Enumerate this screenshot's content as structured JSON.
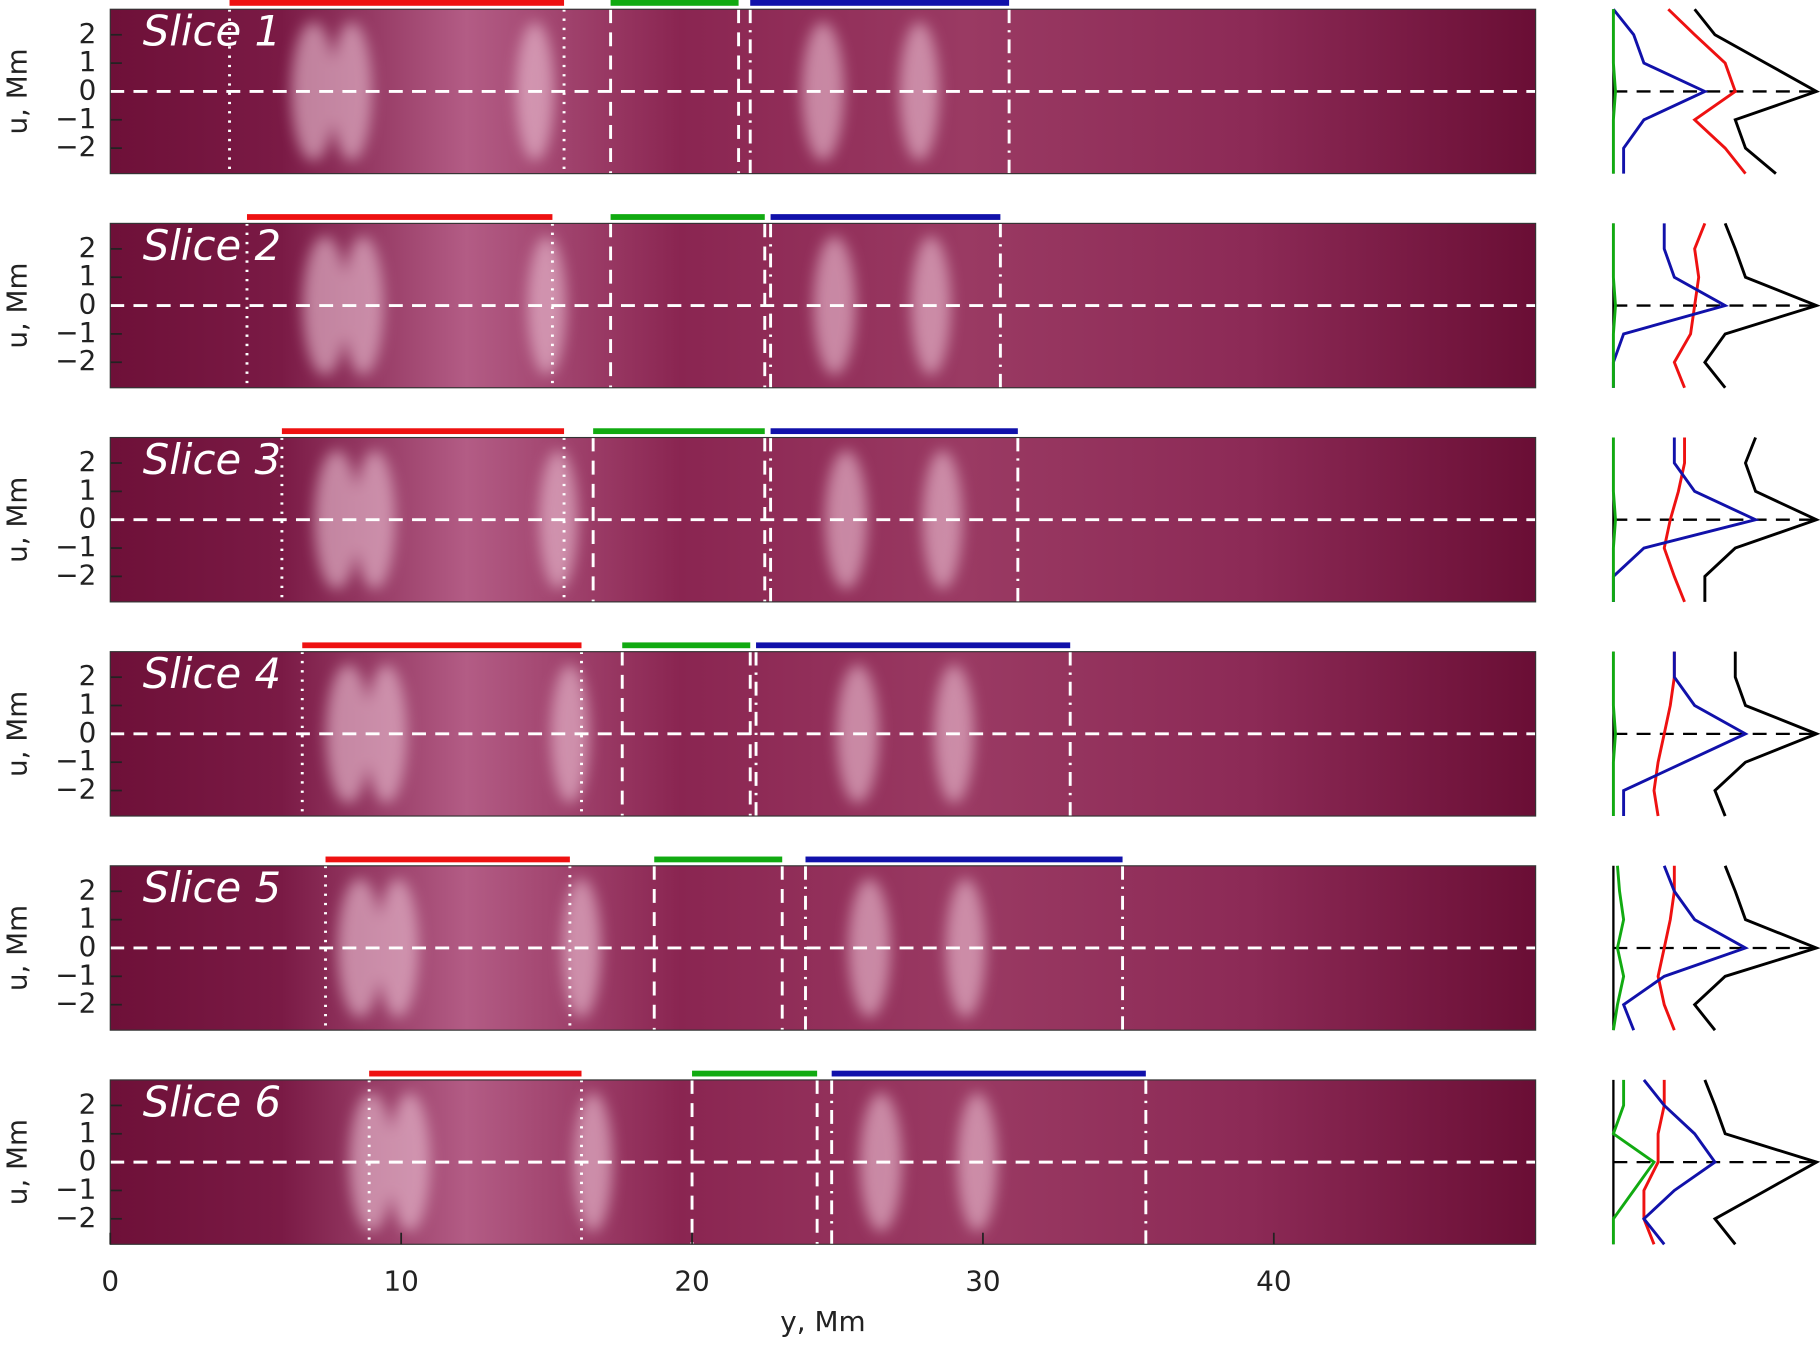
{
  "chart_data": [
    {
      "type": "heatmap",
      "title": "Slice 1",
      "ylabel": "u, Mm",
      "xlim": [
        0,
        49
      ],
      "ylim": [
        -2.9,
        2.9
      ],
      "yticks": [
        2,
        1,
        0,
        {
          "value": -1,
          "label": "−1"
        },
        {
          "value": -2,
          "label": "−2"
        }
      ],
      "segments": [
        {
          "color": "#ee1111",
          "line": "dotted",
          "start": 4.1,
          "end": 15.6
        },
        {
          "color": "#11aa11",
          "line": "dashed",
          "start": 17.2,
          "end": 21.6
        },
        {
          "color": "#1111aa",
          "line": "dashdot",
          "start": 22.0,
          "end": 30.9
        }
      ],
      "profiles": {
        "xlim": [
          0,
          1
        ],
        "u": [
          -2.9,
          -2,
          -1,
          0,
          1,
          2,
          2.9
        ],
        "series": [
          {
            "color": "#000000",
            "values": [
              0.8,
              0.65,
              0.6,
              1.0,
              0.75,
              0.5,
              0.4
            ]
          },
          {
            "color": "#ee1111",
            "values": [
              0.65,
              0.55,
              0.4,
              0.6,
              0.55,
              0.4,
              0.27
            ]
          },
          {
            "color": "#1111aa",
            "values": [
              0.05,
              0.05,
              0.15,
              0.45,
              0.15,
              0.1,
              0.0
            ]
          },
          {
            "color": "#11aa11",
            "values": [
              0.0,
              0.0,
              0.0,
              0.01,
              0.0,
              0.0,
              0.0
            ]
          }
        ]
      }
    },
    {
      "type": "heatmap",
      "title": "Slice 2",
      "ylabel": "u, Mm",
      "xlim": [
        0,
        49
      ],
      "ylim": [
        -2.9,
        2.9
      ],
      "yticks": [
        2,
        1,
        0,
        {
          "value": -1,
          "label": "−1"
        },
        {
          "value": -2,
          "label": "−2"
        }
      ],
      "segments": [
        {
          "color": "#ee1111",
          "line": "dotted",
          "start": 4.7,
          "end": 15.2
        },
        {
          "color": "#11aa11",
          "line": "dashed",
          "start": 17.2,
          "end": 22.5
        },
        {
          "color": "#1111aa",
          "line": "dashdot",
          "start": 22.7,
          "end": 30.6
        }
      ],
      "profiles": {
        "xlim": [
          0,
          1
        ],
        "u": [
          -2.9,
          -2,
          -1,
          0,
          1,
          2,
          2.9
        ],
        "series": [
          {
            "color": "#000000",
            "values": [
              0.55,
              0.45,
              0.55,
              1.0,
              0.65,
              0.6,
              0.55
            ]
          },
          {
            "color": "#ee1111",
            "values": [
              0.35,
              0.3,
              0.38,
              0.4,
              0.42,
              0.4,
              0.45
            ]
          },
          {
            "color": "#1111aa",
            "values": [
              0.0,
              0.0,
              0.05,
              0.55,
              0.3,
              0.25,
              0.25
            ]
          },
          {
            "color": "#11aa11",
            "values": [
              0.0,
              0.0,
              0.0,
              0.01,
              0.0,
              0.0,
              0.0
            ]
          }
        ]
      }
    },
    {
      "type": "heatmap",
      "title": "Slice 3",
      "ylabel": "u, Mm",
      "xlim": [
        0,
        49
      ],
      "ylim": [
        -2.9,
        2.9
      ],
      "yticks": [
        2,
        1,
        0,
        {
          "value": -1,
          "label": "−1"
        },
        {
          "value": -2,
          "label": "−2"
        }
      ],
      "segments": [
        {
          "color": "#ee1111",
          "line": "dotted",
          "start": 5.9,
          "end": 15.6
        },
        {
          "color": "#11aa11",
          "line": "dashed",
          "start": 16.6,
          "end": 22.5
        },
        {
          "color": "#1111aa",
          "line": "dashdot",
          "start": 22.7,
          "end": 31.2
        }
      ],
      "profiles": {
        "xlim": [
          0,
          1
        ],
        "u": [
          -2.9,
          -2,
          -1,
          0,
          1,
          2,
          2.9
        ],
        "series": [
          {
            "color": "#000000",
            "values": [
              0.45,
              0.45,
              0.6,
              1.0,
              0.7,
              0.65,
              0.7
            ]
          },
          {
            "color": "#ee1111",
            "values": [
              0.35,
              0.3,
              0.25,
              0.28,
              0.32,
              0.35,
              0.35
            ]
          },
          {
            "color": "#1111aa",
            "values": [
              0.0,
              0.0,
              0.15,
              0.7,
              0.4,
              0.3,
              0.3
            ]
          },
          {
            "color": "#11aa11",
            "values": [
              0.0,
              0.0,
              0.0,
              0.01,
              0.0,
              0.0,
              0.0
            ]
          }
        ]
      }
    },
    {
      "type": "heatmap",
      "title": "Slice 4",
      "ylabel": "u, Mm",
      "xlim": [
        0,
        49
      ],
      "ylim": [
        -2.9,
        2.9
      ],
      "yticks": [
        2,
        1,
        0,
        {
          "value": -1,
          "label": "−1"
        },
        {
          "value": -2,
          "label": "−2"
        }
      ],
      "segments": [
        {
          "color": "#ee1111",
          "line": "dotted",
          "start": 6.6,
          "end": 16.2
        },
        {
          "color": "#11aa11",
          "line": "dashed",
          "start": 17.6,
          "end": 22.0
        },
        {
          "color": "#1111aa",
          "line": "dashdot",
          "start": 22.2,
          "end": 33.0
        }
      ],
      "profiles": {
        "xlim": [
          0,
          1
        ],
        "u": [
          -2.9,
          -2,
          -1,
          0,
          1,
          2,
          2.9
        ],
        "series": [
          {
            "color": "#000000",
            "values": [
              0.55,
              0.5,
              0.65,
              1.0,
              0.65,
              0.6,
              0.6
            ]
          },
          {
            "color": "#ee1111",
            "values": [
              0.22,
              0.2,
              0.22,
              0.25,
              0.28,
              0.3,
              0.3
            ]
          },
          {
            "color": "#1111aa",
            "values": [
              0.05,
              0.05,
              0.35,
              0.65,
              0.4,
              0.3,
              0.3
            ]
          },
          {
            "color": "#11aa11",
            "values": [
              0.0,
              0.0,
              0.0,
              0.01,
              0.0,
              0.0,
              0.0
            ]
          }
        ]
      }
    },
    {
      "type": "heatmap",
      "title": "Slice 5",
      "ylabel": "u, Mm",
      "xlim": [
        0,
        49
      ],
      "ylim": [
        -2.9,
        2.9
      ],
      "yticks": [
        2,
        1,
        0,
        {
          "value": -1,
          "label": "−1"
        },
        {
          "value": -2,
          "label": "−2"
        }
      ],
      "segments": [
        {
          "color": "#ee1111",
          "line": "dotted",
          "start": 7.4,
          "end": 15.8
        },
        {
          "color": "#11aa11",
          "line": "dashed",
          "start": 18.7,
          "end": 23.1
        },
        {
          "color": "#1111aa",
          "line": "dashdot",
          "start": 23.9,
          "end": 34.8
        }
      ],
      "profiles": {
        "xlim": [
          0,
          1
        ],
        "u": [
          -2.9,
          -2,
          -1,
          0,
          1,
          2,
          2.9
        ],
        "series": [
          {
            "color": "#000000",
            "values": [
              0.5,
              0.4,
              0.55,
              1.0,
              0.65,
              0.6,
              0.55
            ]
          },
          {
            "color": "#ee1111",
            "values": [
              0.3,
              0.25,
              0.22,
              0.25,
              0.28,
              0.3,
              0.3
            ]
          },
          {
            "color": "#1111aa",
            "values": [
              0.1,
              0.05,
              0.25,
              0.65,
              0.4,
              0.3,
              0.25
            ]
          },
          {
            "color": "#11aa11",
            "values": [
              0.0,
              0.02,
              0.05,
              0.02,
              0.05,
              0.03,
              0.02
            ]
          }
        ]
      }
    },
    {
      "type": "heatmap",
      "title": "Slice 6",
      "ylabel": "u, Mm",
      "xlabel": "y, Mm",
      "xlim": [
        0,
        49
      ],
      "ylim": [
        -2.9,
        2.9
      ],
      "xticks": [
        0,
        10,
        20,
        30,
        40
      ],
      "yticks": [
        2,
        1,
        0,
        {
          "value": -1,
          "label": "−1"
        },
        {
          "value": -2,
          "label": "−2"
        }
      ],
      "segments": [
        {
          "color": "#ee1111",
          "line": "dotted",
          "start": 8.9,
          "end": 16.2
        },
        {
          "color": "#11aa11",
          "line": "dashed",
          "start": 20.0,
          "end": 24.3
        },
        {
          "color": "#1111aa",
          "line": "dashdot",
          "start": 24.8,
          "end": 35.6
        }
      ],
      "profiles": {
        "xlim": [
          0,
          1
        ],
        "u": [
          -2.9,
          -2,
          -1,
          0,
          1,
          2,
          2.9
        ],
        "series": [
          {
            "color": "#000000",
            "values": [
              0.6,
              0.5,
              0.75,
              1.0,
              0.55,
              0.5,
              0.45
            ]
          },
          {
            "color": "#ee1111",
            "values": [
              0.2,
              0.15,
              0.15,
              0.22,
              0.22,
              0.25,
              0.25
            ]
          },
          {
            "color": "#1111aa",
            "values": [
              0.25,
              0.15,
              0.3,
              0.5,
              0.4,
              0.25,
              0.15
            ]
          },
          {
            "color": "#11aa11",
            "values": [
              0.0,
              0.0,
              0.1,
              0.2,
              0.0,
              0.05,
              0.05
            ]
          }
        ]
      }
    }
  ]
}
